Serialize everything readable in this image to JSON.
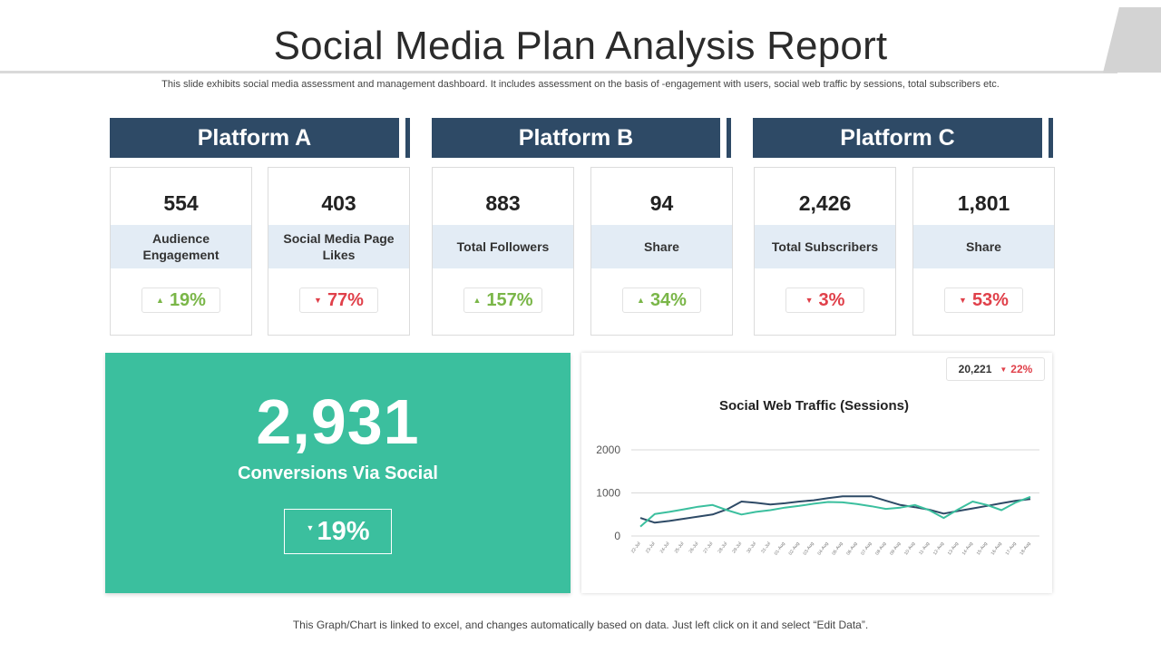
{
  "header": {
    "title": "Social Media Plan Analysis Report",
    "subtitle": "This slide exhibits social media assessment and management dashboard. It includes assessment on the basis of -engagement with users, social web traffic by sessions, total subscribers etc."
  },
  "colors": {
    "header_bg": "#2e4a66",
    "accent_green": "#3bbf9e",
    "up": "#7ab648",
    "down": "#e0404a",
    "band": "#e3ecf5"
  },
  "platforms": [
    {
      "name": "Platform A",
      "metrics": [
        {
          "value": "554",
          "label": "Audience Engagement",
          "change": "19%",
          "direction": "up"
        },
        {
          "value": "403",
          "label": "Social Media Page Likes",
          "change": "77%",
          "direction": "down"
        }
      ]
    },
    {
      "name": "Platform B",
      "metrics": [
        {
          "value": "883",
          "label": "Total Followers",
          "change": "157%",
          "direction": "up"
        },
        {
          "value": "94",
          "label": "Share",
          "change": "34%",
          "direction": "up"
        }
      ]
    },
    {
      "name": "Platform C",
      "metrics": [
        {
          "value": "2,426",
          "label": "Total Subscribers",
          "change": "3%",
          "direction": "down"
        },
        {
          "value": "1,801",
          "label": "Share",
          "change": "53%",
          "direction": "down"
        }
      ]
    }
  ],
  "conversions": {
    "value": "2,931",
    "label": "Conversions Via Social",
    "change": "19%",
    "direction": "down"
  },
  "traffic": {
    "value": "20,221",
    "change": "22%",
    "direction": "down"
  },
  "chart_data": {
    "type": "line",
    "title": "Social Web  Traffic (Sessions)",
    "xlabel": "",
    "ylabel": "",
    "ylim": [
      0,
      2000
    ],
    "yticks": [
      0,
      1000,
      2000
    ],
    "grid": true,
    "x": [
      "22-Jul",
      "23-Jul",
      "24-Jul",
      "25-Jul",
      "26-Jul",
      "27-Jul",
      "28-Jul",
      "29-Jul",
      "30-Jul",
      "31-Jul",
      "01-Aug",
      "02-Aug",
      "03-Aug",
      "04-Aug",
      "05-Aug",
      "06-Aug",
      "07-Aug",
      "08-Aug",
      "09-Aug",
      "10-Aug",
      "11-Aug",
      "12-Aug",
      "13-Aug",
      "14-Aug",
      "15-Aug",
      "16-Aug",
      "17-Aug",
      "18-Aug"
    ],
    "series": [
      {
        "color": "#2e4a66",
        "values": [
          420,
          310,
          350,
          400,
          450,
          500,
          620,
          800,
          770,
          730,
          760,
          800,
          830,
          880,
          920,
          920,
          920,
          820,
          720,
          670,
          610,
          520,
          580,
          640,
          700,
          760,
          820,
          860
        ]
      },
      {
        "color": "#3bbf9e",
        "values": [
          220,
          510,
          560,
          620,
          680,
          720,
          600,
          500,
          560,
          600,
          660,
          700,
          750,
          790,
          780,
          740,
          690,
          630,
          660,
          720,
          600,
          420,
          620,
          800,
          720,
          600,
          780,
          910
        ]
      }
    ]
  },
  "footer": {
    "note": "This Graph/Chart  is linked to excel, and changes automatically based on data. Just left click on it and select “Edit Data”."
  }
}
